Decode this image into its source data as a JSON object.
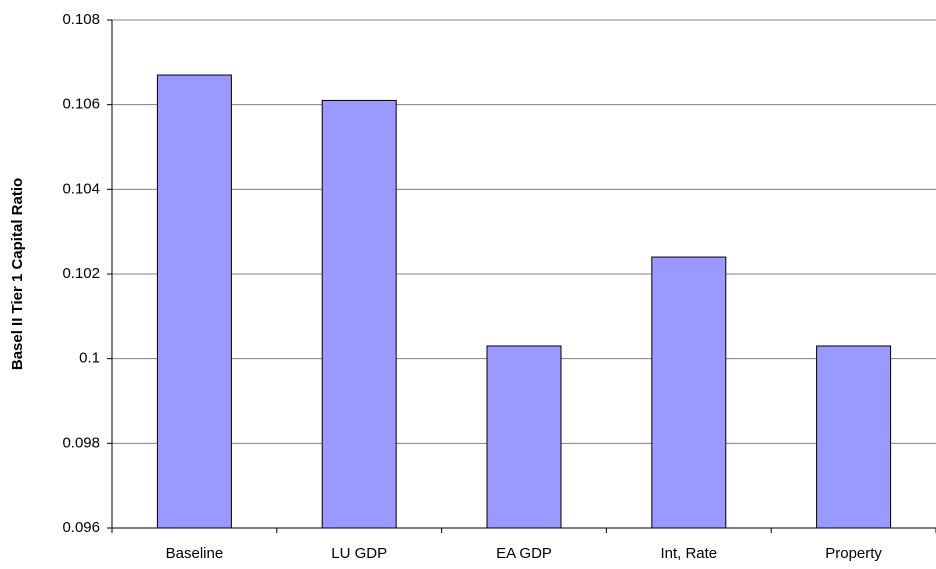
{
  "chart_data": {
    "type": "bar",
    "y_label": "Basel II Tier 1 Capital Ratio",
    "categories": [
      "Baseline",
      "LU GDP",
      "EA GDP",
      "Int, Rate",
      "Property"
    ],
    "values": [
      0.1067,
      0.1061,
      0.1003,
      0.1024,
      0.1003
    ],
    "color": "#9999ff",
    "ylim": [
      0.096,
      0.108
    ],
    "yticks": [
      0.096,
      0.098,
      0.1,
      0.102,
      0.104,
      0.106,
      0.108
    ],
    "grid": true
  }
}
